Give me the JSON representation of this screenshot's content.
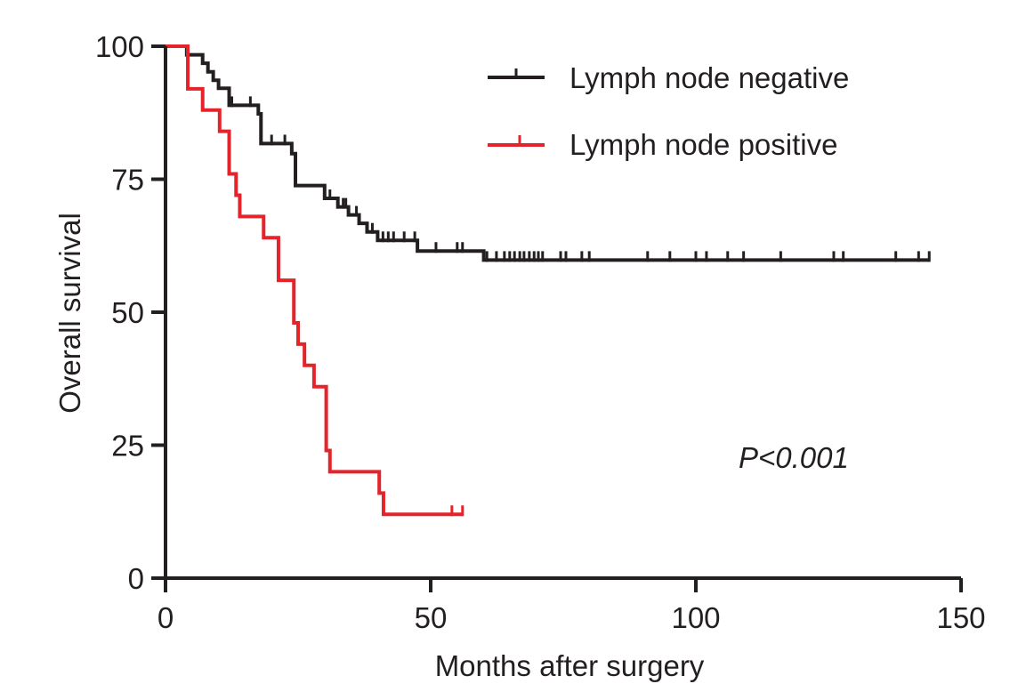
{
  "chart_data": {
    "type": "line",
    "subtype": "kaplan-meier",
    "xlabel": "Months after surgery",
    "ylabel": "Overall survival",
    "xlim": [
      0,
      150
    ],
    "ylim": [
      0,
      100
    ],
    "xticks": [
      0,
      50,
      100,
      150
    ],
    "yticks": [
      0,
      25,
      50,
      75,
      100
    ],
    "grid": false,
    "legend_position": "top-right",
    "annotation": "P<0.001",
    "series": [
      {
        "name": "Lymph node negative",
        "color": "#231f20",
        "steps": [
          [
            0,
            100
          ],
          [
            4,
            98.4
          ],
          [
            7,
            96.8
          ],
          [
            8,
            95.2
          ],
          [
            9,
            93.6
          ],
          [
            10,
            92.1
          ],
          [
            12,
            88.9
          ],
          [
            17.5,
            87.3
          ],
          [
            18,
            81.7
          ],
          [
            23.8,
            79.8
          ],
          [
            24.5,
            73.8
          ],
          [
            30,
            71.4
          ],
          [
            32.5,
            69.8
          ],
          [
            34.5,
            68.3
          ],
          [
            36.5,
            66.7
          ],
          [
            38,
            65.1
          ],
          [
            40,
            63.5
          ],
          [
            47.5,
            61.5
          ],
          [
            60,
            59.8
          ]
        ],
        "end": 144,
        "censored": [
          4,
          12.5,
          16,
          20,
          22.5,
          31,
          32.5,
          33.5,
          34,
          36,
          39,
          41,
          42,
          43,
          45,
          47,
          51,
          55,
          56,
          60.6,
          62.4,
          63.9,
          64.9,
          65.8,
          66.8,
          67.6,
          68.6,
          69.5,
          70.3,
          71.1,
          74.5,
          75.5,
          78.5,
          79.9,
          90.9,
          95.1,
          100,
          102,
          106,
          109,
          116,
          126,
          127.8,
          137.7,
          142,
          144
        ]
      },
      {
        "name": "Lymph node positive",
        "color": "#e3242b",
        "steps": [
          [
            0,
            100
          ],
          [
            4.2,
            92
          ],
          [
            7,
            88
          ],
          [
            10.2,
            84
          ],
          [
            12,
            76
          ],
          [
            13.3,
            72
          ],
          [
            14,
            68
          ],
          [
            18.5,
            64
          ],
          [
            21.3,
            56
          ],
          [
            24.2,
            48
          ],
          [
            25,
            44
          ],
          [
            26.2,
            40
          ],
          [
            28,
            36
          ],
          [
            30.3,
            24
          ],
          [
            31,
            20
          ],
          [
            40.3,
            16
          ],
          [
            41.1,
            12
          ]
        ],
        "end": 56,
        "censored": [
          54,
          56
        ]
      }
    ]
  }
}
